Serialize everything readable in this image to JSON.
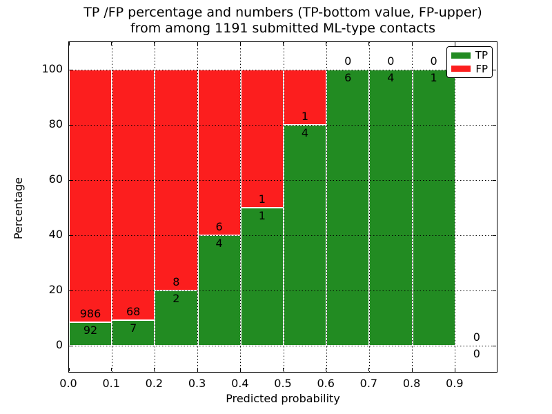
{
  "figure": {
    "title_line1": "TP /FP percentage and numbers (TP-bottom value, FP-upper)",
    "title_line2": "from among 1191 submitted ML-type contacts",
    "xlabel": "Predicted probability",
    "ylabel": "Percentage"
  },
  "chart_data": {
    "type": "bar",
    "stacked": true,
    "orientation": "vertical",
    "title": "TP /FP percentage and numbers (TP-bottom value, FP-upper) from among 1191 submitted ML-type contacts",
    "xlabel": "Predicted probability",
    "ylabel": "Percentage",
    "total_submitted_contacts": 1191,
    "bin_width": 0.1,
    "bins": [
      "0.0-0.1",
      "0.1-0.2",
      "0.2-0.3",
      "0.3-0.4",
      "0.4-0.5",
      "0.5-0.6",
      "0.6-0.7",
      "0.7-0.8",
      "0.8-0.9",
      "0.9-1.0"
    ],
    "series": [
      {
        "name": "TP",
        "color": "#228B22",
        "counts": [
          92,
          7,
          2,
          4,
          1,
          4,
          6,
          4,
          1,
          0
        ],
        "pct": [
          8.53,
          9.33,
          20,
          40,
          50,
          80,
          100,
          100,
          100,
          0
        ]
      },
      {
        "name": "FP",
        "color": "#FC1E1E",
        "counts": [
          986,
          68,
          8,
          6,
          1,
          1,
          0,
          0,
          0,
          0
        ],
        "pct": [
          91.47,
          90.67,
          80,
          60,
          50,
          20,
          0,
          0,
          0,
          0
        ]
      }
    ],
    "x_ticks": [
      "0.0",
      "0.1",
      "0.2",
      "0.3",
      "0.4",
      "0.5",
      "0.6",
      "0.7",
      "0.8",
      "0.9"
    ],
    "y_ticks": [
      "0",
      "20",
      "40",
      "60",
      "80",
      "100"
    ],
    "xlim": [
      0.0,
      1.0
    ],
    "ylim": [
      -10,
      110
    ],
    "grid": true,
    "grid_linestyle": "dotted",
    "legend": {
      "position": "upper right",
      "items": [
        {
          "label": "TP",
          "color": "#228B22"
        },
        {
          "label": "FP",
          "color": "#FC1E1E"
        }
      ]
    }
  }
}
